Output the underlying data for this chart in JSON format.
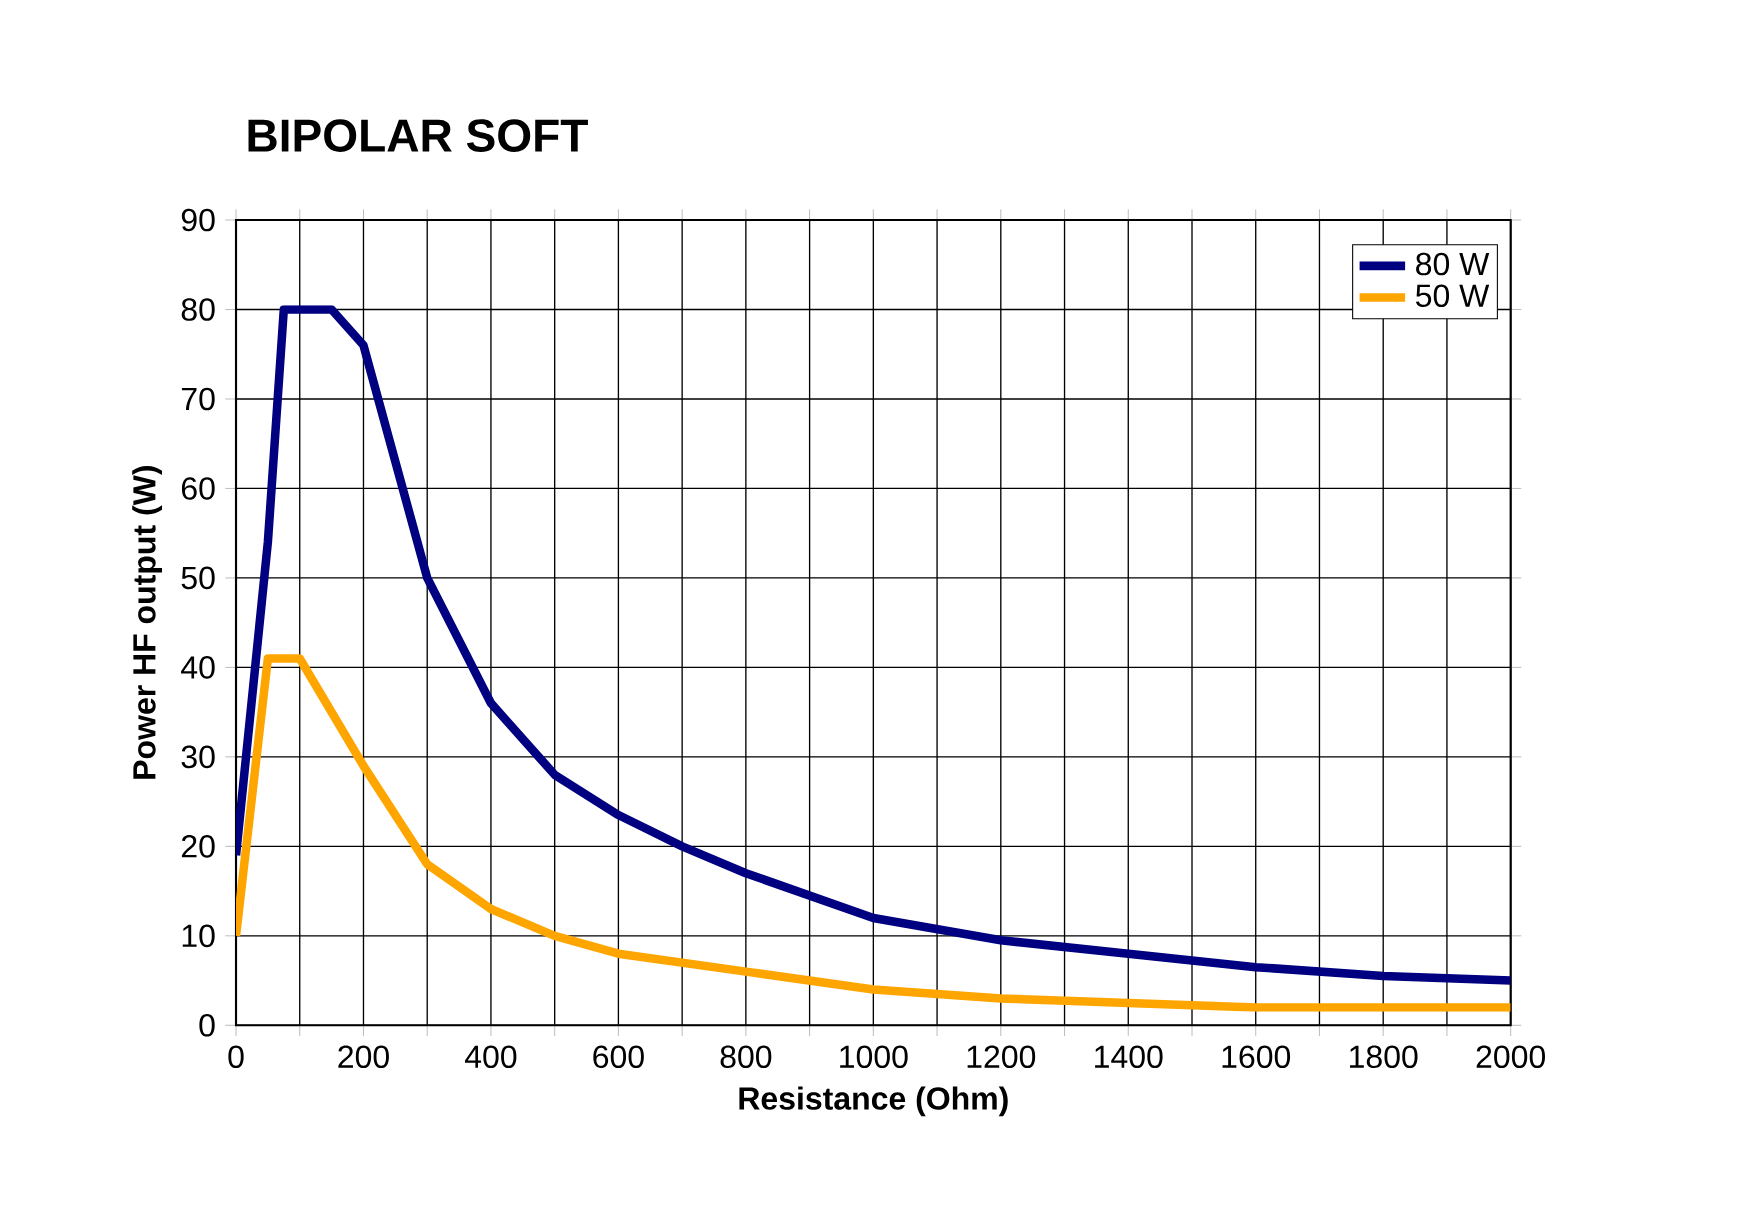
{
  "chart_data": {
    "type": "line",
    "title": "BIPOLAR SOFT",
    "xlabel": "Resistance (Ohm)",
    "ylabel": "Power HF output (W)",
    "xlim": [
      0,
      2000
    ],
    "ylim": [
      0,
      90
    ],
    "xticks": [
      0,
      {
        "value": 100,
        "label": null
      },
      200,
      {
        "value": 300,
        "label": null
      },
      400,
      {
        "value": 500,
        "label": null
      },
      600,
      {
        "value": 700,
        "label": null
      },
      800,
      {
        "value": 900,
        "label": null
      },
      1000,
      {
        "value": 1100,
        "label": null
      },
      1200,
      {
        "value": 1300,
        "label": null
      },
      1400,
      {
        "value": 1500,
        "label": null
      },
      1600,
      {
        "value": 1700,
        "label": null
      },
      1800,
      {
        "value": 1900,
        "label": null
      },
      2000
    ],
    "yticks": [
      0,
      10,
      20,
      30,
      40,
      50,
      60,
      70,
      80,
      90
    ],
    "grid": true,
    "legend": "top right",
    "marker": "none",
    "line_style": "solid",
    "series": [
      {
        "name": "80 W",
        "color": "#000080",
        "x": [
          0,
          50,
          75,
          150,
          200,
          300,
          400,
          500,
          600,
          700,
          800,
          900,
          1000,
          1200,
          1400,
          1600,
          1800,
          2000
        ],
        "values": [
          19,
          54,
          80,
          80,
          76,
          50,
          36,
          28,
          23.5,
          20,
          17,
          14.5,
          12,
          9.5,
          8,
          6.5,
          5.5,
          5
        ]
      },
      {
        "name": "50 W",
        "color": "#ffa500",
        "x": [
          0,
          50,
          100,
          200,
          300,
          400,
          500,
          600,
          800,
          1000,
          1200,
          1400,
          1600,
          1800,
          2000
        ],
        "values": [
          10,
          41,
          41,
          29,
          18,
          13,
          10,
          8,
          6,
          4,
          3,
          2.5,
          2,
          2,
          2
        ]
      }
    ]
  }
}
